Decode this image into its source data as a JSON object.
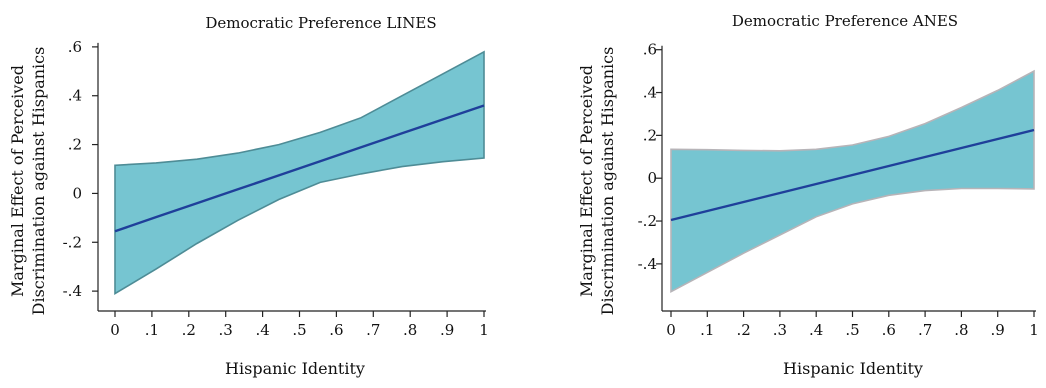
{
  "chart_data": [
    {
      "type": "area",
      "title": "Democratic Preference LINES",
      "xlabel": "Hispanic Identity",
      "ylabel_lines": [
        "Marginal Effect of Perceived",
        "Discrimination against Hispanics"
      ],
      "xlim": [
        0,
        1
      ],
      "ylim": [
        -0.42,
        0.62
      ],
      "xticks": [
        0,
        0.1,
        0.2,
        0.3,
        0.4,
        0.5,
        0.6,
        0.7,
        0.8,
        0.9,
        1
      ],
      "xtick_labels": [
        "0",
        ".1",
        ".2",
        ".3",
        ".4",
        ".5",
        ".6",
        ".7",
        ".8",
        ".9",
        "1"
      ],
      "yticks": [
        -0.4,
        -0.2,
        0,
        0.2,
        0.4,
        0.6
      ],
      "ytick_labels": [
        "-.4",
        "-.2",
        "0",
        ".2",
        ".4",
        ".6"
      ],
      "x": [
        0,
        0.111,
        0.222,
        0.333,
        0.444,
        0.556,
        0.667,
        0.778,
        0.889,
        1
      ],
      "series": [
        {
          "role": "estimate",
          "values": [
            -0.155,
            -0.097,
            -0.04,
            0.017,
            0.074,
            0.132,
            0.189,
            0.246,
            0.303,
            0.36
          ]
        },
        {
          "role": "ci_upper",
          "values": [
            0.115,
            0.125,
            0.14,
            0.165,
            0.2,
            0.25,
            0.31,
            0.4,
            0.49,
            0.58
          ]
        },
        {
          "role": "ci_lower",
          "values": [
            -0.41,
            -0.31,
            -0.205,
            -0.11,
            -0.025,
            0.045,
            0.08,
            0.11,
            0.13,
            0.145
          ]
        }
      ],
      "colors": {
        "band": "#76c5d1",
        "band_edge": "#4e8c96",
        "line": "#1f3f9a"
      },
      "grid": false
    },
    {
      "type": "area",
      "title": "Democratic Preference ANES",
      "xlabel": "Hispanic Identity",
      "ylabel_lines": [
        "Marginal Effect of Perceived",
        "Discrimination against Hispanics"
      ],
      "xlim": [
        0,
        1
      ],
      "ylim": [
        -0.55,
        0.72
      ],
      "xticks": [
        0,
        0.1,
        0.2,
        0.3,
        0.4,
        0.5,
        0.6,
        0.7,
        0.8,
        0.9,
        1
      ],
      "xtick_labels": [
        "0",
        ".1",
        ".2",
        ".3",
        ".4",
        ".5",
        ".6",
        ".7",
        ".8",
        ".9",
        "1"
      ],
      "yticks": [
        -0.4,
        -0.2,
        0,
        0.2,
        0.4,
        0.6
      ],
      "ytick_labels": [
        "-.4",
        "-.2",
        "0",
        ".2",
        ".4",
        ".6"
      ],
      "x": [
        0,
        0.1,
        0.2,
        0.3,
        0.4,
        0.5,
        0.6,
        0.7,
        0.8,
        0.9,
        1
      ],
      "series": [
        {
          "role": "estimate",
          "values": [
            -0.195,
            -0.153,
            -0.111,
            -0.069,
            -0.027,
            0.015,
            0.057,
            0.099,
            0.141,
            0.183,
            0.225
          ]
        },
        {
          "role": "ci_upper",
          "values": [
            0.135,
            0.133,
            0.13,
            0.128,
            0.135,
            0.155,
            0.195,
            0.255,
            0.33,
            0.41,
            0.5
          ]
        },
        {
          "role": "ci_lower",
          "values": [
            -0.53,
            -0.44,
            -0.35,
            -0.265,
            -0.18,
            -0.12,
            -0.08,
            -0.058,
            -0.048,
            -0.048,
            -0.05
          ]
        }
      ],
      "colors": {
        "band": "#76c5d1",
        "band_edge": "#b7b4b8",
        "line": "#1f3f9a"
      },
      "grid": false
    }
  ]
}
